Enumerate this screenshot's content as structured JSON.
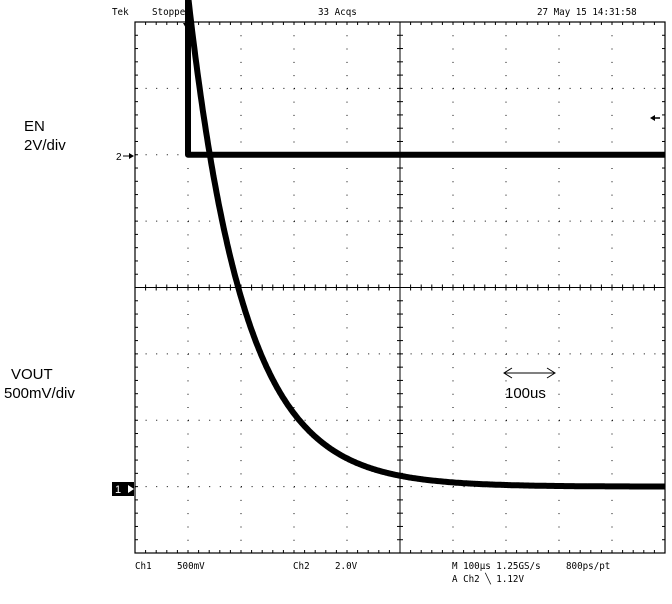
{
  "header": {
    "brand": "Tek",
    "state": "Stopped",
    "acquisitions": "33 Acqs",
    "datetime": "27 May 15 14:31:58"
  },
  "channels": {
    "en": {
      "name": "EN",
      "scale": "2V/div",
      "marker": "2"
    },
    "vout": {
      "name": "VOUT",
      "scale": "500mV/div",
      "marker": "1"
    }
  },
  "annotation": {
    "text": "100us"
  },
  "footer": {
    "ch1_label": "Ch1",
    "ch1_scale": "500mV",
    "ch2_label": "Ch2",
    "ch2_scale": "2.0V",
    "timebase": "M 100µs 1.25GS/s",
    "record": "800ps/pt",
    "trigger": "A Ch2 ╲ 1.12V"
  },
  "chart_data": {
    "type": "line",
    "x_unit": "µs",
    "time_per_div": 100,
    "divisions": {
      "x": 10,
      "y": 8
    },
    "trigger_time": 100,
    "series": [
      {
        "name": "EN",
        "volts_per_div": 2,
        "x": [
          0,
          100,
          100,
          1000
        ],
        "y": [
          5.0,
          5.0,
          0.0,
          0.0
        ]
      },
      {
        "name": "VOUT",
        "volts_per_div": 0.5,
        "time_constant": 105,
        "x": [
          0,
          100,
          125,
          150,
          175,
          200,
          250,
          300,
          350,
          400,
          450,
          500,
          600,
          700,
          800,
          1000
        ],
        "y": [
          3.7,
          3.7,
          2.88,
          2.25,
          1.75,
          1.36,
          0.83,
          0.52,
          0.32,
          0.19,
          0.12,
          0.07,
          0.03,
          0.01,
          0.0,
          0.0
        ]
      }
    ]
  }
}
